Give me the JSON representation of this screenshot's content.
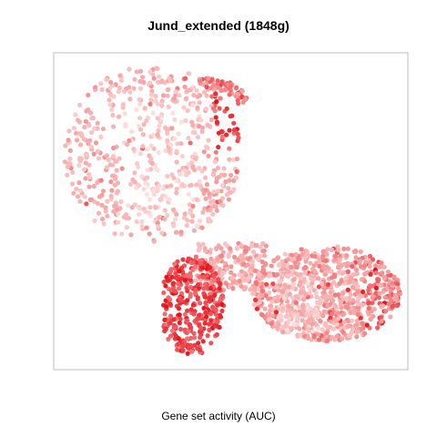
{
  "chart_data": {
    "type": "scatter",
    "title": "Jund_extended (1848g)",
    "xlabel": "Gene set activity (AUC)",
    "ylabel": "",
    "xlim": [
      0,
      100
    ],
    "ylim": [
      0,
      100
    ],
    "grid": false,
    "legend": "none",
    "axes_visible": false,
    "color_scale": {
      "low": "#ffecec",
      "mid": "#f5a0a0",
      "high": "#e6121b",
      "value_range": [
        0,
        1
      ]
    },
    "point_cloud": {
      "note_regions": [
        {
          "region": "upper-left lobe",
          "x_range": [
            4,
            56
          ],
          "y_range": [
            31,
            97
          ],
          "typical_level": 0.35
        },
        {
          "region": "top right of upper lobe",
          "x_range": [
            47,
            55
          ],
          "y_range": [
            68,
            86
          ],
          "typical_level": 0.75
        },
        {
          "region": "lower-left cluster",
          "x_range": [
            31,
            47
          ],
          "y_range": [
            5,
            35
          ],
          "typical_level": 0.8
        },
        {
          "region": "lower-right arm",
          "x_range": [
            57,
            97
          ],
          "y_range": [
            8,
            39
          ],
          "typical_level": 0.4
        }
      ]
    }
  }
}
